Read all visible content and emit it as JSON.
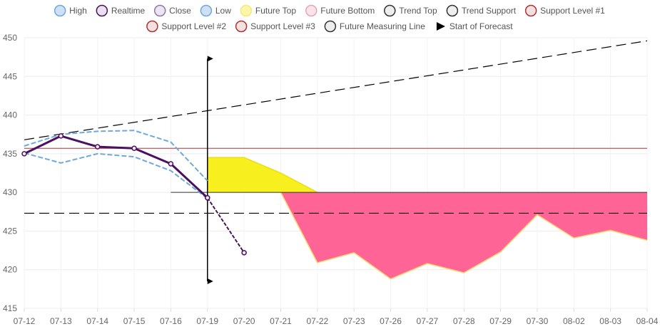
{
  "chart_data": {
    "type": "line",
    "categories": [
      "07-12",
      "07-13",
      "07-14",
      "07-15",
      "07-16",
      "07-19",
      "07-20",
      "07-21",
      "07-22",
      "07-23",
      "07-26",
      "07-27",
      "07-28",
      "07-29",
      "07-30",
      "08-02",
      "08-03",
      "08-04"
    ],
    "ylim": [
      415,
      450
    ],
    "yticks": [
      415,
      420,
      425,
      430,
      435,
      440,
      445,
      450
    ],
    "grid": true,
    "legend_position": "top",
    "legend": [
      {
        "label": "High",
        "marker": "circle",
        "fill": "#cfe0f5",
        "stroke": "#6fa8dc"
      },
      {
        "label": "Realtime",
        "marker": "circle",
        "fill": "#e8e0ef",
        "stroke": "#4b1060"
      },
      {
        "label": "Close",
        "marker": "circle",
        "fill": "#ece6f2",
        "stroke": "#8a79a8"
      },
      {
        "label": "Low",
        "marker": "circle",
        "fill": "#cfe0f5",
        "stroke": "#6fa8dc"
      },
      {
        "label": "Future Top",
        "marker": "circle",
        "fill": "#fdf6a8",
        "stroke": "#f2ea7a"
      },
      {
        "label": "Future Bottom",
        "marker": "circle",
        "fill": "#fbe3ea",
        "stroke": "#e8a3b8"
      },
      {
        "label": "Trend Top",
        "marker": "circle",
        "fill": "#eeeeee",
        "stroke": "#333333"
      },
      {
        "label": "Trend Support",
        "marker": "circle",
        "fill": "#eeeeee",
        "stroke": "#333333"
      },
      {
        "label": "Support Level #1",
        "marker": "circle",
        "fill": "#f3e1e1",
        "stroke": "#b03030"
      },
      {
        "label": "Support Level #2",
        "marker": "circle",
        "fill": "#f3e1e1",
        "stroke": "#b03030"
      },
      {
        "label": "Support Level #3",
        "marker": "circle",
        "fill": "#f3e1e1",
        "stroke": "#b03030"
      },
      {
        "label": "Future Measuring Line",
        "marker": "circle",
        "fill": "#eeeeee",
        "stroke": "#333333"
      },
      {
        "label": "Start of Forecast",
        "marker": "triangle",
        "fill": "#000000",
        "stroke": "#000000"
      }
    ],
    "series": [
      {
        "name": "High",
        "color": "#6fa8dc",
        "dash": true,
        "values": [
          436.0,
          437.5,
          437.9,
          438.0,
          436.5,
          431.5,
          null,
          null,
          null,
          null,
          null,
          null,
          null,
          null,
          null,
          null,
          null,
          null
        ]
      },
      {
        "name": "Low",
        "color": "#6fa8dc",
        "dash": true,
        "values": [
          435.1,
          433.8,
          435.0,
          434.6,
          432.8,
          429.2,
          null,
          null,
          null,
          null,
          null,
          null,
          null,
          null,
          null,
          null,
          null,
          null
        ]
      },
      {
        "name": "Realtime",
        "color": "#4b1060",
        "dash": false,
        "values": [
          435.0,
          437.3,
          435.9,
          435.7,
          433.7,
          429.3,
          null,
          null,
          null,
          null,
          null,
          null,
          null,
          null,
          null,
          null,
          null,
          null
        ]
      },
      {
        "name": "Close",
        "color": "#4b1060",
        "dash": true,
        "values": [
          null,
          null,
          null,
          null,
          null,
          429.3,
          422.2,
          null,
          null,
          null,
          null,
          null,
          null,
          null,
          null,
          null,
          null,
          null
        ]
      },
      {
        "name": "Future Top",
        "color": "#f7f01e",
        "values": [
          null,
          null,
          null,
          null,
          null,
          434.5,
          434.5,
          432.5,
          430.0,
          null,
          null,
          null,
          null,
          null,
          null,
          null,
          null,
          null
        ]
      },
      {
        "name": "Future Bottom",
        "color": "#ff4d8f",
        "values": [
          null,
          null,
          null,
          null,
          null,
          null,
          null,
          430.0,
          420.9,
          422.2,
          418.8,
          420.8,
          419.6,
          422.3,
          427.1,
          424.1,
          425.1,
          423.8
        ]
      },
      {
        "name": "Trend Top",
        "color": "#000000",
        "dash": true,
        "from": [
          0,
          436.8
        ],
        "to": [
          17,
          449.6
        ]
      },
      {
        "name": "Trend Support",
        "color": "#000000",
        "dash": true,
        "value": 427.3
      },
      {
        "name": "Support Level #1",
        "color": "#b03030",
        "value": 435.7
      },
      {
        "name": "Future Measuring Line",
        "color": "#333333",
        "value": 430.0,
        "from_index": 4,
        "to_index": 17
      },
      {
        "name": "Start of Forecast",
        "color": "#000000",
        "x_index": 5,
        "y_range": [
          418.5,
          447.3
        ]
      }
    ]
  }
}
